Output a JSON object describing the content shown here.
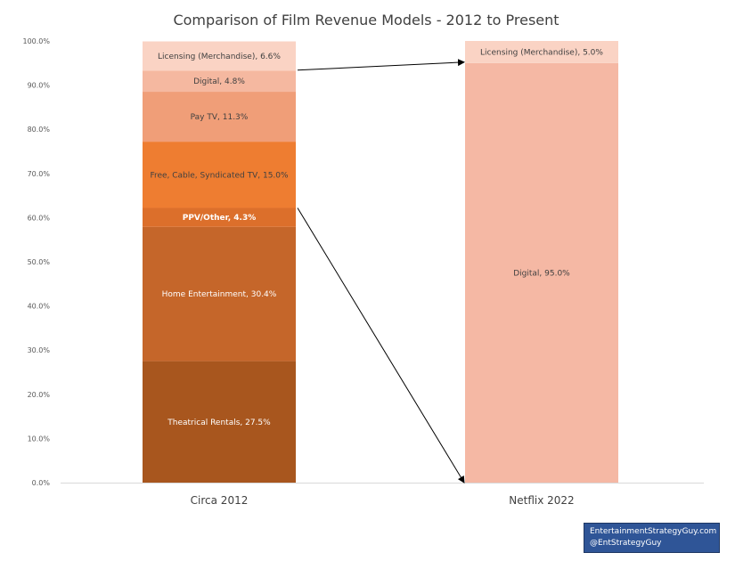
{
  "chart_data": {
    "type": "bar",
    "stacked": true,
    "title": "Comparison of Film Revenue Models - 2012 to Present",
    "xlabel": "",
    "ylabel": "",
    "ylim": [
      0,
      100
    ],
    "y_tick_labels": [
      "0.0%",
      "10.0%",
      "20.0%",
      "30.0%",
      "40.0%",
      "50.0%",
      "60.0%",
      "70.0%",
      "80.0%",
      "90.0%",
      "100.0%"
    ],
    "grid": false,
    "categories": [
      "Circa 2012",
      "Netflix 2022"
    ],
    "stacks": [
      {
        "category": "Circa 2012",
        "segments": [
          {
            "name": "Theatrical Rentals",
            "value": 27.5,
            "label": "Theatrical Rentals, 27.5%",
            "color": "#a8561e",
            "label_color": "#ffffff"
          },
          {
            "name": "Home Entertainment",
            "value": 30.4,
            "label": "Home Entertainment, 30.4%",
            "color": "#c5662a",
            "label_color": "#ffffff"
          },
          {
            "name": "PPV/Other",
            "value": 4.3,
            "label": "PPV/Other, 4.3%",
            "color": "#dc6f2b",
            "label_color": "#ffffff",
            "bold": true
          },
          {
            "name": "Free, Cable, Syndicated TV",
            "value": 15.0,
            "label": "Free, Cable, Syndicated TV, 15.0%",
            "color": "#ee7d31",
            "label_color": "#404040"
          },
          {
            "name": "Pay TV",
            "value": 11.3,
            "label": "Pay TV, 11.3%",
            "color": "#f09e78",
            "label_color": "#404040"
          },
          {
            "name": "Digital",
            "value": 4.8,
            "label": "Digital, 4.8%",
            "color": "#f5b8a0",
            "label_color": "#404040"
          },
          {
            "name": "Licensing (Merchandise)",
            "value": 6.6,
            "label": "Licensing (Merchandise), 6.6%",
            "color": "#fad3c4",
            "label_color": "#404040"
          }
        ]
      },
      {
        "category": "Netflix 2022",
        "segments": [
          {
            "name": "Digital",
            "value": 95.0,
            "label": "Digital, 95.0%",
            "color": "#f5b8a4",
            "label_color": "#404040"
          },
          {
            "name": "Licensing (Merchandise)",
            "value": 5.0,
            "label": "Licensing (Merchandise), 5.0%",
            "color": "#fad3c4",
            "label_color": "#404040"
          }
        ]
      }
    ],
    "annotations": [
      {
        "type": "arrow",
        "from": {
          "category": "Circa 2012",
          "y": 93.4
        },
        "to": {
          "category": "Netflix 2022",
          "y": 95.2
        }
      },
      {
        "type": "arrow",
        "from": {
          "category": "Circa 2012",
          "y": 62.2
        },
        "to": {
          "category": "Netflix 2022",
          "y": 0
        }
      }
    ]
  },
  "credit": {
    "line1": "EntertainmentStrategyGuy.com",
    "line2": "@EntStrategyGuy"
  }
}
